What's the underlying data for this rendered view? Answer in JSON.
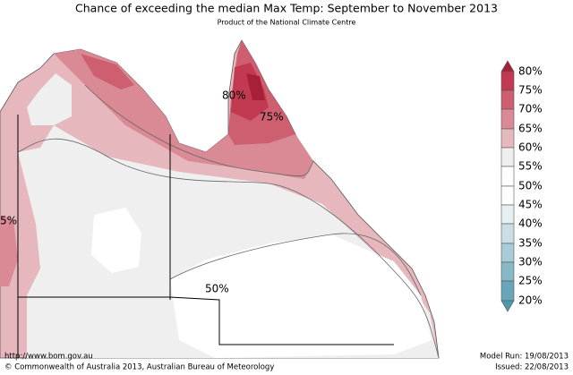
{
  "header": {
    "title": "Chance of exceeding the median Max Temp: September to November 2013",
    "subtitle": "Product of the National Climate Centre"
  },
  "map": {
    "contour_labels": [
      "80%",
      "75%",
      "50%",
      "5%"
    ]
  },
  "legend": {
    "labels": [
      "80%",
      "75%",
      "70%",
      "65%",
      "60%",
      "55%",
      "50%",
      "45%",
      "40%",
      "35%",
      "30%",
      "25%",
      "20%"
    ]
  },
  "footer": {
    "url": "http://www.bom.gov.au",
    "copyright": "©  Commonwealth of Australia 2013, Australian Bureau of Meteorology",
    "model_run": "Model Run: 19/08/2013",
    "issued": "Issued: 22/08/2013"
  }
}
